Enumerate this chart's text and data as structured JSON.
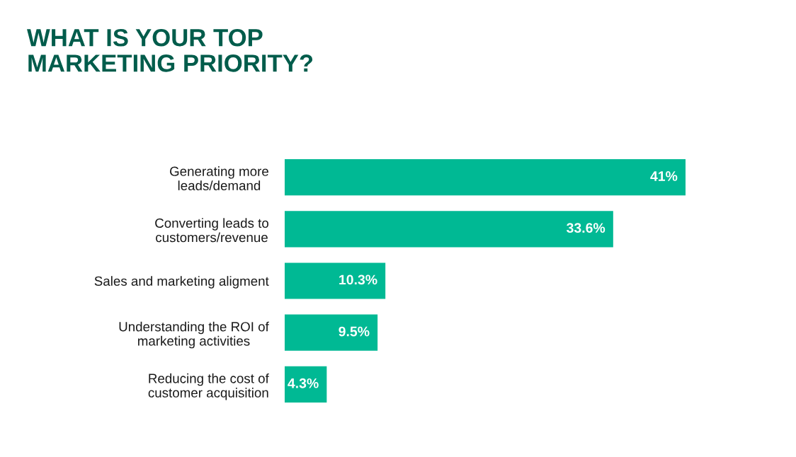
{
  "chart_data": {
    "type": "bar",
    "orientation": "horizontal",
    "title": "WHAT IS YOUR TOP\nMARKETING PRIORITY?",
    "categories": [
      "Generating more\nleads/demand",
      "Converting leads to\ncustomers/revenue",
      "Sales and marketing aligment",
      "Understanding the ROI of\nmarketing activities",
      "Reducing the cost of\ncustomer acquisition"
    ],
    "values": [
      41,
      33.6,
      10.3,
      9.5,
      4.3
    ],
    "value_labels": [
      "41%",
      "33.6%",
      "10.3%",
      "9.5%",
      "4.3%"
    ],
    "color": "#00b994"
  }
}
